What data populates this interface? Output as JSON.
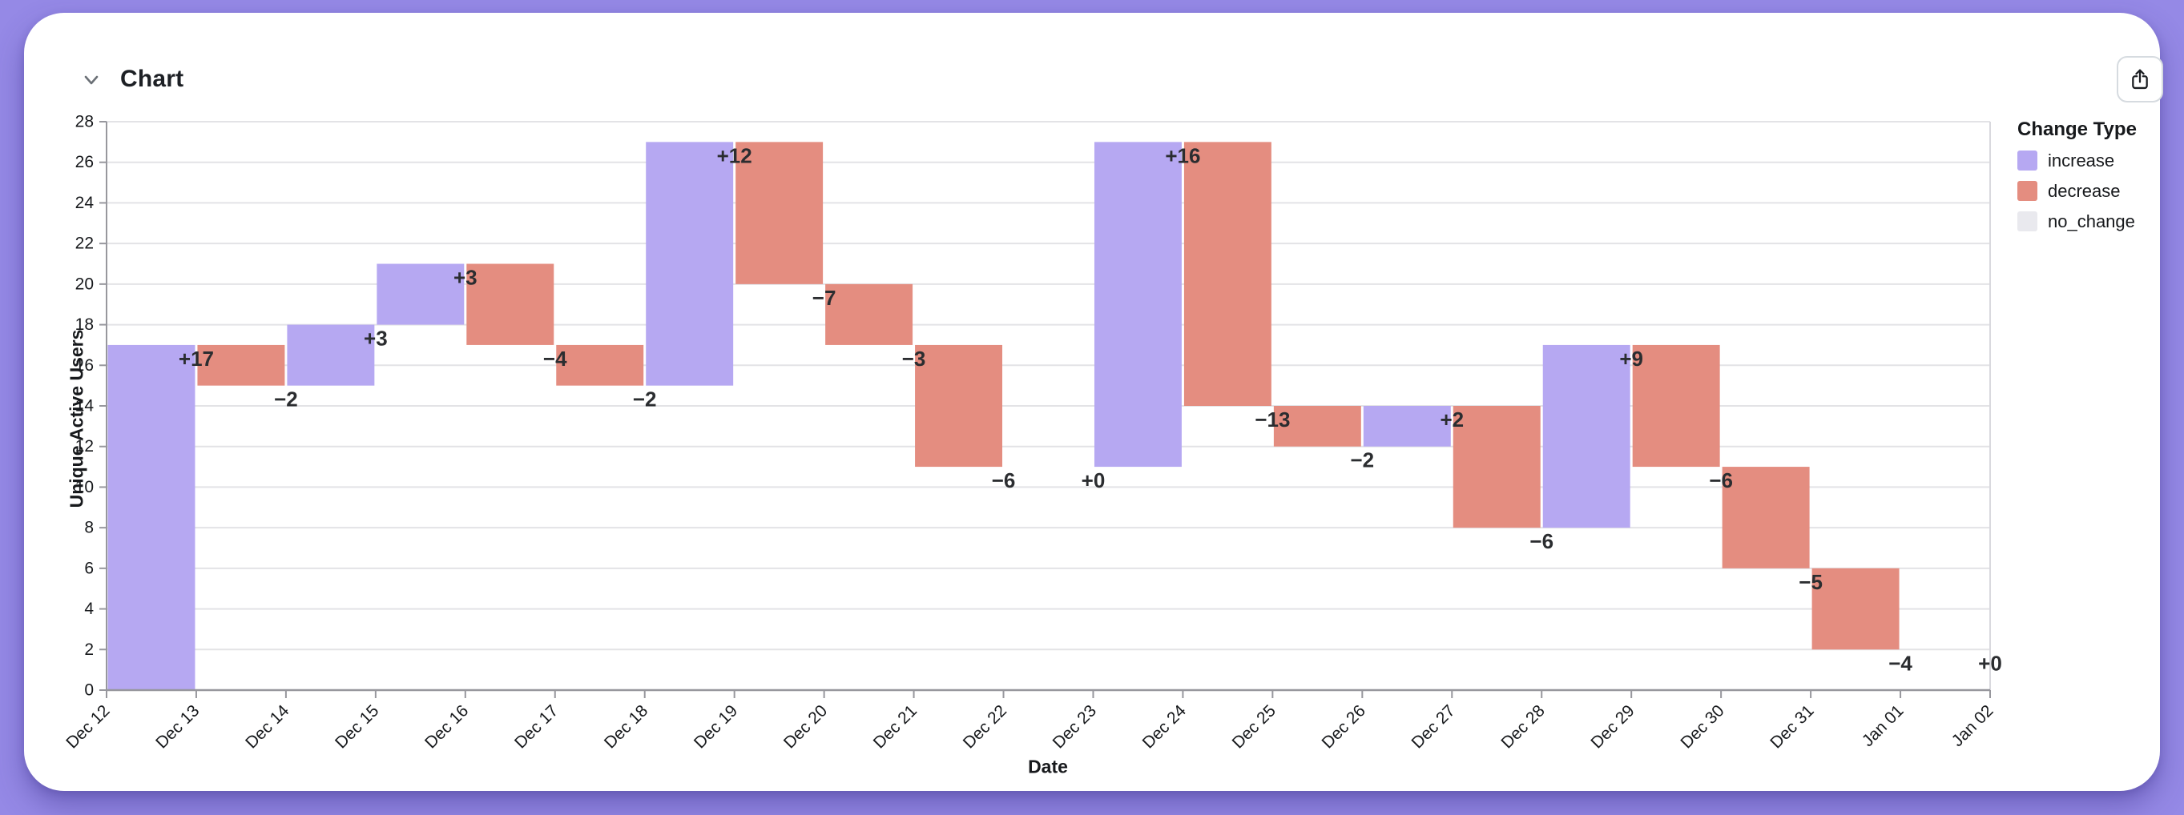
{
  "header": {
    "title": "Chart"
  },
  "icons": {
    "collapse": "chevron-down",
    "share": "share-up-arrow"
  },
  "legend": {
    "title": "Change Type",
    "items": [
      {
        "label": "increase",
        "color": "#b6a8f2"
      },
      {
        "label": "decrease",
        "color": "#e48d80"
      },
      {
        "label": "no_change",
        "color": "#e9e9ee"
      }
    ]
  },
  "chart_data": {
    "type": "bar",
    "subtype": "waterfall",
    "title": "Chart",
    "xlabel": "Date",
    "ylabel": "Unique Active Users",
    "ylim": [
      0,
      28
    ],
    "y_ticks": [
      0,
      2,
      4,
      6,
      8,
      10,
      12,
      14,
      16,
      18,
      20,
      22,
      24,
      26,
      28
    ],
    "x_ticks": [
      "Dec 12",
      "Dec 13",
      "Dec 14",
      "Dec 15",
      "Dec 16",
      "Dec 17",
      "Dec 18",
      "Dec 19",
      "Dec 20",
      "Dec 21",
      "Dec 22",
      "Dec 23",
      "Dec 24",
      "Dec 25",
      "Dec 26",
      "Dec 27",
      "Dec 28",
      "Dec 29",
      "Dec 30",
      "Dec 31",
      "Jan 01",
      "Jan 02"
    ],
    "grid": true,
    "legend_position": "right",
    "bars": [
      {
        "date": "Dec 12",
        "change": 17,
        "type": "increase",
        "start": 0,
        "end": 17,
        "label": "+17"
      },
      {
        "date": "Dec 13",
        "change": -2,
        "type": "decrease",
        "start": 17,
        "end": 15,
        "label": "−2"
      },
      {
        "date": "Dec 14",
        "change": 3,
        "type": "increase",
        "start": 15,
        "end": 18,
        "label": "+3"
      },
      {
        "date": "Dec 15",
        "change": 3,
        "type": "increase",
        "start": 18,
        "end": 21,
        "label": "+3"
      },
      {
        "date": "Dec 16",
        "change": -4,
        "type": "decrease",
        "start": 21,
        "end": 17,
        "label": "−4"
      },
      {
        "date": "Dec 17",
        "change": -2,
        "type": "decrease",
        "start": 17,
        "end": 15,
        "label": "−2"
      },
      {
        "date": "Dec 18",
        "change": 12,
        "type": "increase",
        "start": 15,
        "end": 27,
        "label": "+12"
      },
      {
        "date": "Dec 19",
        "change": -7,
        "type": "decrease",
        "start": 27,
        "end": 20,
        "label": "−7"
      },
      {
        "date": "Dec 20",
        "change": -3,
        "type": "decrease",
        "start": 20,
        "end": 17,
        "label": "−3"
      },
      {
        "date": "Dec 21",
        "change": -6,
        "type": "decrease",
        "start": 17,
        "end": 11,
        "label": "−6"
      },
      {
        "date": "Dec 22",
        "change": 0,
        "type": "no_change",
        "start": 11,
        "end": 11,
        "label": "+0"
      },
      {
        "date": "Dec 23",
        "change": 16,
        "type": "increase",
        "start": 11,
        "end": 27,
        "label": "+16"
      },
      {
        "date": "Dec 24",
        "change": -13,
        "type": "decrease",
        "start": 27,
        "end": 14,
        "label": "−13"
      },
      {
        "date": "Dec 25",
        "change": -2,
        "type": "decrease",
        "start": 14,
        "end": 12,
        "label": "−2"
      },
      {
        "date": "Dec 26",
        "change": 2,
        "type": "increase",
        "start": 12,
        "end": 14,
        "label": "+2"
      },
      {
        "date": "Dec 27",
        "change": -6,
        "type": "decrease",
        "start": 14,
        "end": 8,
        "label": "−6"
      },
      {
        "date": "Dec 28",
        "change": 9,
        "type": "increase",
        "start": 8,
        "end": 17,
        "label": "+9"
      },
      {
        "date": "Dec 29",
        "change": -6,
        "type": "decrease",
        "start": 17,
        "end": 11,
        "label": "−6"
      },
      {
        "date": "Dec 30",
        "change": -5,
        "type": "decrease",
        "start": 11,
        "end": 6,
        "label": "−5"
      },
      {
        "date": "Dec 31",
        "change": -4,
        "type": "decrease",
        "start": 6,
        "end": 2,
        "label": "−4"
      },
      {
        "date": "Jan 01",
        "change": 0,
        "type": "no_change",
        "start": 2,
        "end": 2,
        "label": "+0"
      }
    ]
  },
  "colors": {
    "page_background": "#9589e6",
    "card_background": "#ffffff",
    "increase": "#b6a8f2",
    "decrease": "#e48d80",
    "no_change": "#e9e9ee",
    "gridline": "#e3e3e6",
    "plot_right_border": "#d9d9de",
    "axis": "#97979d",
    "tick_text": "#17191c",
    "value_label": "#2b2d30"
  }
}
